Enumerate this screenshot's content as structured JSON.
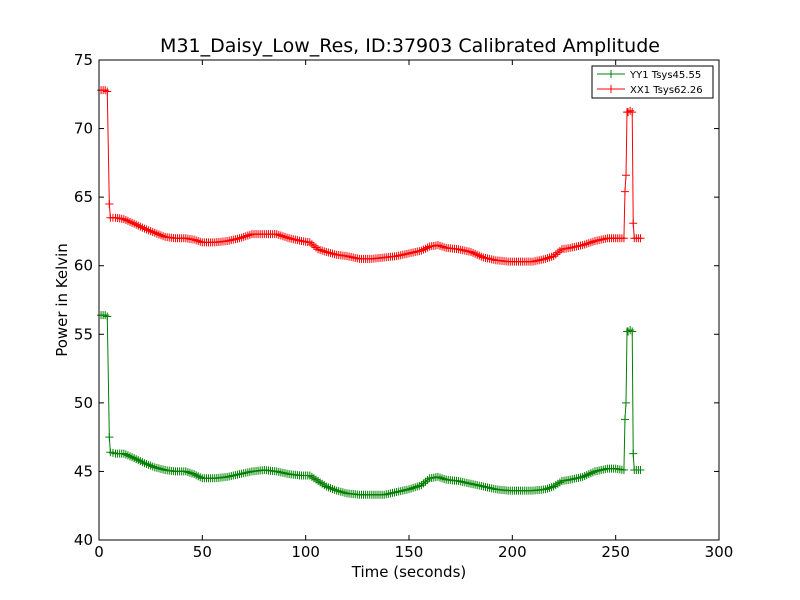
{
  "chart_data": {
    "type": "line",
    "title": "M31_Daisy_Low_Res, ID:37903 Calibrated Amplitude",
    "xlabel": "Time (seconds)",
    "ylabel": "Power in Kelvin",
    "xlim": [
      0,
      300
    ],
    "ylim": [
      40,
      75
    ],
    "xticks": [
      0,
      50,
      100,
      150,
      200,
      250,
      300
    ],
    "yticks": [
      40,
      45,
      50,
      55,
      60,
      65,
      70,
      75
    ],
    "grid": false,
    "legend_position": "top-right",
    "series": [
      {
        "name": "YY1 Tsys45.55",
        "color": "#008000",
        "marker": "+",
        "points": [
          [
            1,
            56.4
          ],
          [
            2,
            56.4
          ],
          [
            3,
            56.4
          ],
          [
            4,
            56.3
          ],
          [
            5,
            47.5
          ],
          [
            5.5,
            46.4
          ],
          [
            8,
            46.3
          ],
          [
            12,
            46.3
          ],
          [
            18,
            45.9
          ],
          [
            22,
            45.6
          ],
          [
            27,
            45.3
          ],
          [
            32,
            45.1
          ],
          [
            37,
            45.0
          ],
          [
            42,
            45.0
          ],
          [
            46,
            44.8
          ],
          [
            50,
            44.5
          ],
          [
            56,
            44.5
          ],
          [
            62,
            44.6
          ],
          [
            68,
            44.8
          ],
          [
            74,
            45.0
          ],
          [
            80,
            45.1
          ],
          [
            86,
            45.0
          ],
          [
            92,
            44.8
          ],
          [
            98,
            44.7
          ],
          [
            102,
            44.7
          ],
          [
            106,
            44.3
          ],
          [
            110,
            43.9
          ],
          [
            115,
            43.6
          ],
          [
            120,
            43.4
          ],
          [
            126,
            43.3
          ],
          [
            132,
            43.3
          ],
          [
            138,
            43.3
          ],
          [
            144,
            43.5
          ],
          [
            150,
            43.7
          ],
          [
            156,
            44.0
          ],
          [
            160,
            44.5
          ],
          [
            164,
            44.6
          ],
          [
            168,
            44.4
          ],
          [
            174,
            44.3
          ],
          [
            180,
            44.1
          ],
          [
            186,
            43.9
          ],
          [
            192,
            43.7
          ],
          [
            198,
            43.6
          ],
          [
            204,
            43.6
          ],
          [
            210,
            43.6
          ],
          [
            216,
            43.7
          ],
          [
            220,
            43.9
          ],
          [
            224,
            44.3
          ],
          [
            228,
            44.4
          ],
          [
            234,
            44.6
          ],
          [
            240,
            45.0
          ],
          [
            246,
            45.2
          ],
          [
            250,
            45.2
          ],
          [
            254,
            45.1
          ],
          [
            254.5,
            48.8
          ],
          [
            255,
            50.0
          ],
          [
            255.5,
            55.2
          ],
          [
            256,
            55.2
          ],
          [
            257,
            55.3
          ],
          [
            258,
            55.2
          ],
          [
            258.5,
            46.3
          ],
          [
            259,
            45.1
          ],
          [
            260,
            45.1
          ],
          [
            261,
            45.1
          ],
          [
            262,
            45.1
          ]
        ]
      },
      {
        "name": "XX1 Tsys62.26",
        "color": "#ff0000",
        "marker": "+",
        "points": [
          [
            1,
            72.8
          ],
          [
            2,
            72.8
          ],
          [
            3,
            72.8
          ],
          [
            4,
            72.7
          ],
          [
            5,
            64.5
          ],
          [
            5.5,
            63.5
          ],
          [
            8,
            63.5
          ],
          [
            12,
            63.4
          ],
          [
            18,
            63.0
          ],
          [
            22,
            62.7
          ],
          [
            27,
            62.4
          ],
          [
            32,
            62.1
          ],
          [
            37,
            62.0
          ],
          [
            42,
            62.0
          ],
          [
            46,
            61.9
          ],
          [
            50,
            61.7
          ],
          [
            56,
            61.7
          ],
          [
            62,
            61.8
          ],
          [
            68,
            62.0
          ],
          [
            74,
            62.3
          ],
          [
            80,
            62.3
          ],
          [
            86,
            62.3
          ],
          [
            92,
            62.0
          ],
          [
            98,
            61.8
          ],
          [
            102,
            61.7
          ],
          [
            106,
            61.2
          ],
          [
            110,
            61.0
          ],
          [
            115,
            60.8
          ],
          [
            120,
            60.7
          ],
          [
            126,
            60.5
          ],
          [
            132,
            60.5
          ],
          [
            138,
            60.6
          ],
          [
            144,
            60.7
          ],
          [
            150,
            60.9
          ],
          [
            156,
            61.1
          ],
          [
            160,
            61.4
          ],
          [
            164,
            61.5
          ],
          [
            168,
            61.3
          ],
          [
            174,
            61.2
          ],
          [
            180,
            61.0
          ],
          [
            186,
            60.6
          ],
          [
            192,
            60.4
          ],
          [
            198,
            60.3
          ],
          [
            204,
            60.3
          ],
          [
            210,
            60.3
          ],
          [
            216,
            60.5
          ],
          [
            220,
            60.7
          ],
          [
            224,
            61.2
          ],
          [
            228,
            61.3
          ],
          [
            234,
            61.5
          ],
          [
            240,
            61.8
          ],
          [
            246,
            62.0
          ],
          [
            250,
            62.0
          ],
          [
            254,
            62.0
          ],
          [
            254.5,
            65.4
          ],
          [
            255,
            66.6
          ],
          [
            255.5,
            71.2
          ],
          [
            256,
            71.2
          ],
          [
            257,
            71.3
          ],
          [
            258,
            71.2
          ],
          [
            258.5,
            63.1
          ],
          [
            259,
            62.0
          ],
          [
            260,
            62.0
          ],
          [
            261,
            62.0
          ],
          [
            262,
            62.0
          ]
        ]
      }
    ]
  }
}
